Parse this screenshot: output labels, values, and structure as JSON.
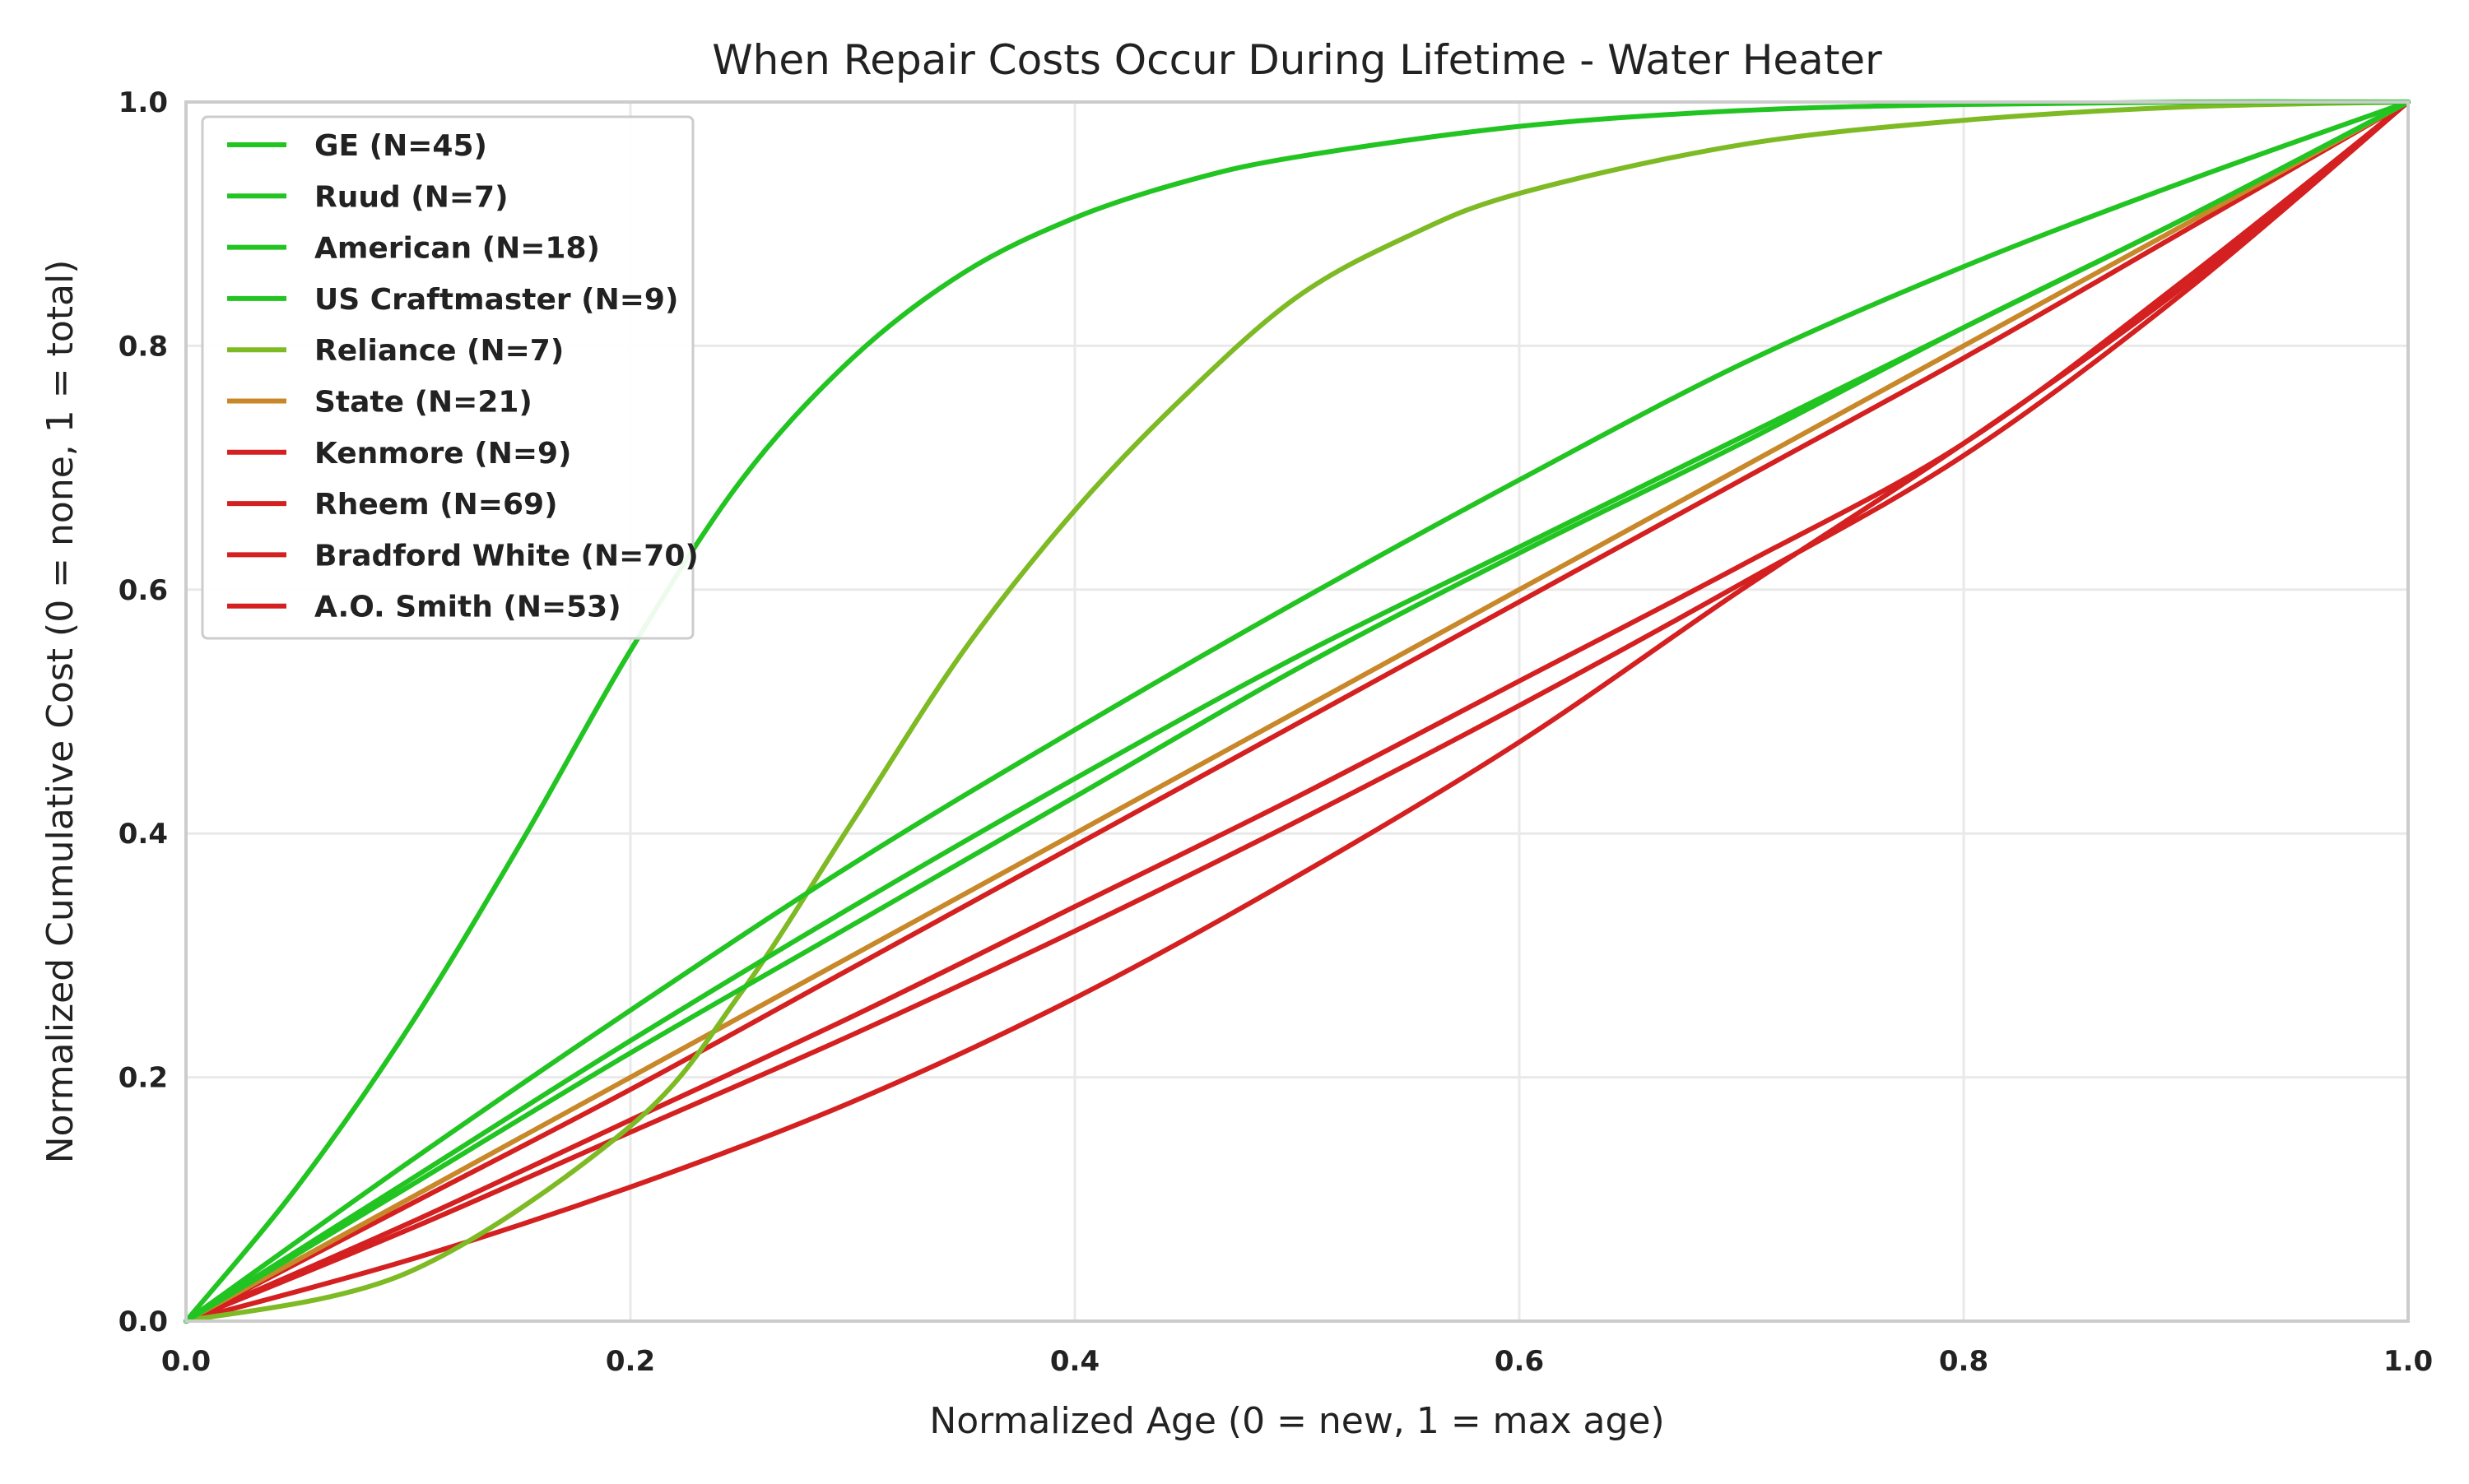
{
  "chart_data": {
    "type": "line",
    "title": "When Repair Costs Occur During Lifetime - Water Heater",
    "xlabel": "Normalized Age (0 = new, 1 = max age)",
    "ylabel": "Normalized Cumulative Cost (0 = none, 1 = total)",
    "xlim": [
      0,
      1
    ],
    "ylim": [
      0,
      1
    ],
    "xticks": [
      "0.0",
      "0.2",
      "0.4",
      "0.6",
      "0.8",
      "1.0"
    ],
    "yticks": [
      "0.0",
      "0.2",
      "0.4",
      "0.6",
      "0.8",
      "1.0"
    ],
    "grid": true,
    "legend_position": "top-left",
    "series": [
      {
        "name": "GE (N=45)",
        "color": "#22c422",
        "x": [
          0,
          0.05,
          0.1,
          0.15,
          0.2,
          0.25,
          0.3,
          0.35,
          0.4,
          0.45,
          0.5,
          0.6,
          0.7,
          0.8,
          0.9,
          1.0
        ],
        "y": [
          0,
          0.11,
          0.24,
          0.39,
          0.55,
          0.69,
          0.79,
          0.86,
          0.905,
          0.935,
          0.955,
          0.98,
          0.993,
          0.998,
          1.0,
          1.0
        ]
      },
      {
        "name": "Ruud (N=7)",
        "color": "#22c422",
        "x": [
          0,
          0.1,
          0.2,
          0.3,
          0.4,
          0.5,
          0.6,
          0.7,
          0.8,
          0.9,
          1.0
        ],
        "y": [
          0,
          0.13,
          0.255,
          0.375,
          0.485,
          0.59,
          0.69,
          0.785,
          0.865,
          0.935,
          1.0
        ]
      },
      {
        "name": "American (N=18)",
        "color": "#22c422",
        "x": [
          0,
          0.1,
          0.2,
          0.3,
          0.4,
          0.5,
          0.6,
          0.7,
          0.8,
          0.9,
          1.0
        ],
        "y": [
          0,
          0.115,
          0.23,
          0.34,
          0.445,
          0.545,
          0.635,
          0.725,
          0.815,
          0.905,
          1.0
        ]
      },
      {
        "name": "US Craftmaster (N=9)",
        "color": "#22c422",
        "x": [
          0,
          0.1,
          0.2,
          0.3,
          0.4,
          0.5,
          0.6,
          0.7,
          0.8,
          0.9,
          1.0
        ],
        "y": [
          0,
          0.11,
          0.22,
          0.325,
          0.43,
          0.535,
          0.63,
          0.72,
          0.815,
          0.905,
          1.0
        ]
      },
      {
        "name": "Reliance (N=7)",
        "color": "#7dba24",
        "x": [
          0,
          0.1,
          0.2,
          0.25,
          0.3,
          0.35,
          0.4,
          0.45,
          0.5,
          0.55,
          0.6,
          0.7,
          0.8,
          0.9,
          1.0
        ],
        "y": [
          0,
          0.04,
          0.16,
          0.27,
          0.41,
          0.55,
          0.665,
          0.76,
          0.84,
          0.89,
          0.925,
          0.965,
          0.985,
          0.996,
          1.0
        ]
      },
      {
        "name": "State (N=21)",
        "color": "#c8882a",
        "x": [
          0,
          0.2,
          0.4,
          0.6,
          0.8,
          1.0
        ],
        "y": [
          0,
          0.2,
          0.4,
          0.6,
          0.8,
          1.0
        ]
      },
      {
        "name": "Kenmore (N=9)",
        "color": "#d42020",
        "x": [
          0,
          0.1,
          0.2,
          0.3,
          0.4,
          0.5,
          0.6,
          0.7,
          0.8,
          0.9,
          1.0
        ],
        "y": [
          0,
          0.095,
          0.19,
          0.29,
          0.39,
          0.49,
          0.59,
          0.69,
          0.79,
          0.895,
          1.0
        ]
      },
      {
        "name": "Rheem (N=69)",
        "color": "#d42020",
        "x": [
          0,
          0.1,
          0.2,
          0.3,
          0.4,
          0.5,
          0.6,
          0.7,
          0.8,
          0.9,
          1.0
        ],
        "y": [
          0,
          0.08,
          0.165,
          0.25,
          0.34,
          0.43,
          0.525,
          0.62,
          0.72,
          0.855,
          1.0
        ]
      },
      {
        "name": "Bradford White (N=70)",
        "color": "#d42020",
        "x": [
          0,
          0.1,
          0.2,
          0.3,
          0.4,
          0.5,
          0.6,
          0.7,
          0.8,
          0.9,
          1.0
        ],
        "y": [
          0,
          0.075,
          0.155,
          0.235,
          0.32,
          0.41,
          0.505,
          0.605,
          0.71,
          0.845,
          1.0
        ]
      },
      {
        "name": "A.O. Smith (N=53)",
        "color": "#d42020",
        "x": [
          0,
          0.1,
          0.2,
          0.3,
          0.4,
          0.5,
          0.6,
          0.7,
          0.8,
          0.9,
          1.0
        ],
        "y": [
          0,
          0.05,
          0.11,
          0.18,
          0.265,
          0.365,
          0.475,
          0.6,
          0.72,
          0.85,
          1.0
        ]
      }
    ]
  }
}
